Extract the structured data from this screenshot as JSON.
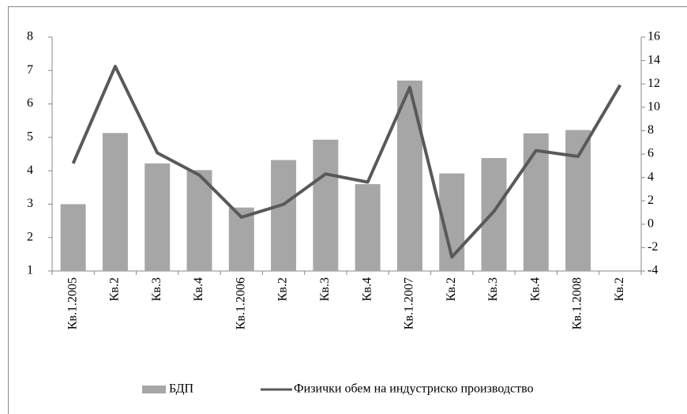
{
  "chart_data": {
    "type": "combo",
    "categories": [
      "Кв.1.2005",
      "Кв.2",
      "Кв.3",
      "Кв.4",
      "Кв.1.2006",
      "Кв.2",
      "Кв.3",
      "Кв.4",
      "Кв.1.2007",
      "Кв.2",
      "Кв.3",
      "Кв.4",
      "Кв.1.2008",
      "Кв.2"
    ],
    "series": [
      {
        "name": "БДП",
        "type": "bar",
        "axis": "y",
        "color": "#a6a6a6",
        "values": [
          3.0,
          5.13,
          4.22,
          4.02,
          2.9,
          4.32,
          4.93,
          3.6,
          6.7,
          3.92,
          4.38,
          5.12,
          5.22,
          null
        ]
      },
      {
        "name": "Физички обем на индустриско производство",
        "type": "line",
        "axis": "y2",
        "color": "#595959",
        "values": [
          5.2,
          13.5,
          6.1,
          4.2,
          0.6,
          1.7,
          4.3,
          3.6,
          11.7,
          -2.8,
          1.1,
          6.3,
          5.8,
          11.9
        ]
      }
    ],
    "ylim": [
      1,
      8
    ],
    "yticks": [
      1,
      2,
      3,
      4,
      5,
      6,
      7,
      8
    ],
    "y2lim": [
      -4,
      16
    ],
    "y2ticks": [
      -4,
      -2,
      0,
      2,
      4,
      6,
      8,
      10,
      12,
      14,
      16
    ],
    "legend": "bottom"
  }
}
